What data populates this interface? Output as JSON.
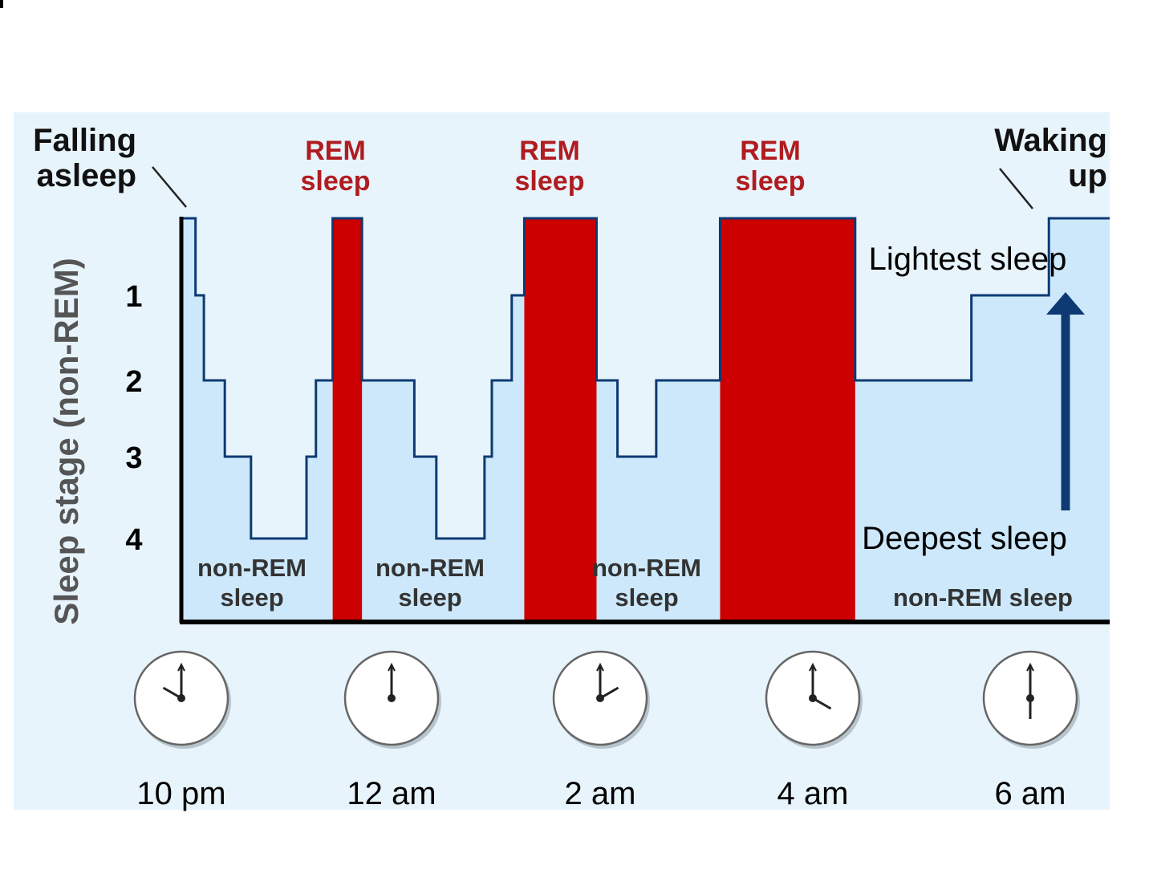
{
  "colors": {
    "panel_bg": "#e8f4fc",
    "area_fill": "#cce8fa",
    "line": "#0d3a73",
    "rem": "#cc0000",
    "rem_label": "#b01c20",
    "text_dark": "#111111",
    "text_gray": "#333333",
    "axis_label": "#555555",
    "arrow": "#0d3a73"
  },
  "chart_data": {
    "type": "area",
    "ylabel": "Sleep stage (non-REM)",
    "y_ticks": [
      "1",
      "2",
      "3",
      "4"
    ],
    "x_ticks": [
      "10 pm",
      "12 am",
      "2 am",
      "4 am",
      "6 am"
    ],
    "x_hours_at_ticks": [
      0,
      2,
      4,
      6,
      8
    ],
    "x_range": [
      0,
      9.0
    ],
    "y_range_note": "stage axis: 0 = awake/light (top), 4 = deepest",
    "hypnogram": [
      [
        0.0,
        0
      ],
      [
        0.12,
        0
      ],
      [
        0.12,
        1
      ],
      [
        0.2,
        1
      ],
      [
        0.2,
        2
      ],
      [
        0.4,
        2
      ],
      [
        0.4,
        3
      ],
      [
        0.65,
        3
      ],
      [
        0.65,
        4
      ],
      [
        1.18,
        4
      ],
      [
        1.18,
        3
      ],
      [
        1.27,
        3
      ],
      [
        1.27,
        2
      ],
      [
        1.43,
        2
      ],
      [
        1.43,
        0
      ],
      [
        1.71,
        0
      ],
      [
        1.71,
        2
      ],
      [
        2.21,
        2
      ],
      [
        2.21,
        3
      ],
      [
        2.42,
        3
      ],
      [
        2.42,
        4
      ],
      [
        2.88,
        4
      ],
      [
        2.88,
        3
      ],
      [
        2.95,
        3
      ],
      [
        2.95,
        2
      ],
      [
        3.14,
        2
      ],
      [
        3.14,
        1
      ],
      [
        3.26,
        1
      ],
      [
        3.26,
        0
      ],
      [
        3.95,
        0
      ],
      [
        3.95,
        2
      ],
      [
        4.15,
        2
      ],
      [
        4.15,
        3
      ],
      [
        4.52,
        3
      ],
      [
        4.52,
        2
      ],
      [
        5.13,
        2
      ],
      [
        5.13,
        0
      ],
      [
        6.42,
        0
      ],
      [
        6.42,
        2
      ],
      [
        7.53,
        2
      ],
      [
        7.53,
        1
      ],
      [
        8.27,
        1
      ],
      [
        8.27,
        0
      ],
      [
        9.0,
        0
      ]
    ],
    "rem_periods": [
      {
        "start": 1.43,
        "end": 1.71
      },
      {
        "start": 3.26,
        "end": 3.95
      },
      {
        "start": 5.13,
        "end": 6.42
      }
    ],
    "rem_labels": [
      {
        "line1": "REM",
        "line2": "sleep"
      },
      {
        "line1": "REM",
        "line2": "sleep"
      },
      {
        "line1": "REM",
        "line2": "sleep"
      }
    ],
    "nonrem_labels": [
      {
        "line1": "non-REM",
        "line2": "sleep"
      },
      {
        "line1": "non-REM",
        "line2": "sleep"
      },
      {
        "line1": "non-REM",
        "line2": "sleep"
      },
      {
        "line1": "non-REM sleep",
        "line2": ""
      }
    ],
    "annotations": {
      "falling_asleep": [
        "Falling",
        "asleep"
      ],
      "waking_up": [
        "Waking",
        "up"
      ],
      "lightest": "Lightest sleep",
      "deepest": "Deepest sleep"
    },
    "clocks": [
      {
        "label": "10 pm",
        "hour": 10
      },
      {
        "label": "12 am",
        "hour": 12
      },
      {
        "label": "2 am",
        "hour": 2
      },
      {
        "label": "4 am",
        "hour": 4
      },
      {
        "label": "6 am",
        "hour": 6
      }
    ]
  }
}
